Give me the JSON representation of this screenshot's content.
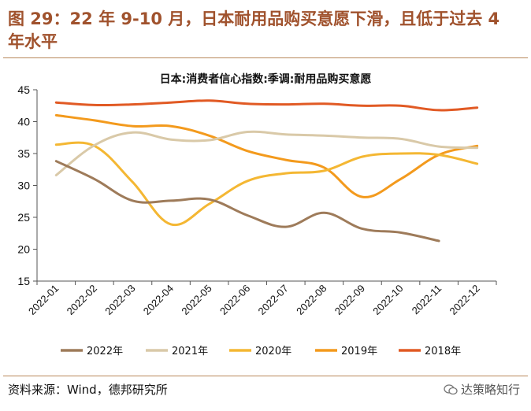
{
  "figure": {
    "title": "图 29：22 年 9-10 月，日本耐用品购买意愿下滑，且低于过去 4 年水平",
    "source": "资料来源：Wind，德邦研究所",
    "watermark": "达策略知行",
    "watermark_icon": "wechat-icon"
  },
  "chart_data": {
    "type": "line",
    "title": "日本:消费者信心指数:季调:耐用品购买意愿",
    "xlabel": "",
    "ylabel": "",
    "ylim": [
      15,
      45
    ],
    "yticks": [
      15,
      20,
      25,
      30,
      35,
      40,
      45
    ],
    "categories": [
      "2022-01",
      "2022-02",
      "2022-03",
      "2022-04",
      "2022-05",
      "2022-06",
      "2022-07",
      "2022-08",
      "2022-09",
      "2022-10",
      "2022-11",
      "2022-12"
    ],
    "grid": false,
    "legend_position": "bottom",
    "series": [
      {
        "name": "2022年",
        "color": "#9e7b5a",
        "values": [
          33.8,
          31.0,
          27.6,
          27.6,
          27.8,
          25.3,
          23.5,
          25.7,
          23.2,
          22.6,
          21.3,
          null
        ]
      },
      {
        "name": "2021年",
        "color": "#d9c9a8",
        "values": [
          31.6,
          36.3,
          38.3,
          37.2,
          37.1,
          38.4,
          38.0,
          37.8,
          37.5,
          37.3,
          36.1,
          35.9
        ]
      },
      {
        "name": "2020年",
        "color": "#f4b733",
        "values": [
          36.4,
          36.2,
          30.5,
          23.9,
          27.1,
          30.7,
          31.9,
          32.3,
          34.5,
          35.0,
          34.8,
          33.4
        ]
      },
      {
        "name": "2019年",
        "color": "#f39a1d",
        "values": [
          41.0,
          40.2,
          39.3,
          39.3,
          37.8,
          35.4,
          34.0,
          32.8,
          28.2,
          31.0,
          34.8,
          36.2
        ]
      },
      {
        "name": "2018年",
        "color": "#e15a24",
        "values": [
          43.0,
          42.6,
          42.7,
          43.0,
          43.3,
          42.8,
          42.7,
          42.8,
          42.5,
          42.5,
          41.8,
          42.2
        ]
      }
    ]
  }
}
